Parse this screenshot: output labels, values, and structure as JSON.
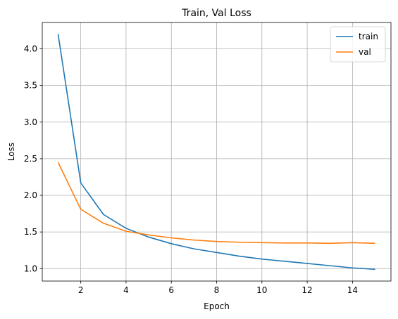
{
  "chart_data": {
    "type": "line",
    "title": "Train, Val Loss",
    "xlabel": "Epoch",
    "ylabel": "Loss",
    "xlim": [
      0.3,
      15.7
    ],
    "ylim": [
      0.83,
      4.36
    ],
    "xticks": [
      2,
      4,
      6,
      8,
      10,
      12,
      14
    ],
    "xtick_labels": [
      "2",
      "4",
      "6",
      "8",
      "10",
      "12",
      "14"
    ],
    "yticks": [
      1.0,
      1.5,
      2.0,
      2.5,
      3.0,
      3.5,
      4.0
    ],
    "ytick_labels": [
      "1.0",
      "1.5",
      "2.0",
      "2.5",
      "3.0",
      "3.5",
      "4.0"
    ],
    "grid": true,
    "legend_position": "top-right",
    "x": [
      1,
      2,
      3,
      4,
      5,
      6,
      7,
      8,
      9,
      10,
      11,
      12,
      13,
      14,
      15
    ],
    "series": [
      {
        "name": "train",
        "color": "#1f77b4",
        "values": [
          4.2,
          2.17,
          1.74,
          1.55,
          1.43,
          1.34,
          1.27,
          1.22,
          1.17,
          1.13,
          1.1,
          1.07,
          1.04,
          1.01,
          0.99
        ]
      },
      {
        "name": "val",
        "color": "#ff7f0e",
        "values": [
          2.45,
          1.81,
          1.62,
          1.51,
          1.46,
          1.42,
          1.39,
          1.37,
          1.36,
          1.355,
          1.35,
          1.35,
          1.345,
          1.355,
          1.345
        ]
      }
    ]
  }
}
